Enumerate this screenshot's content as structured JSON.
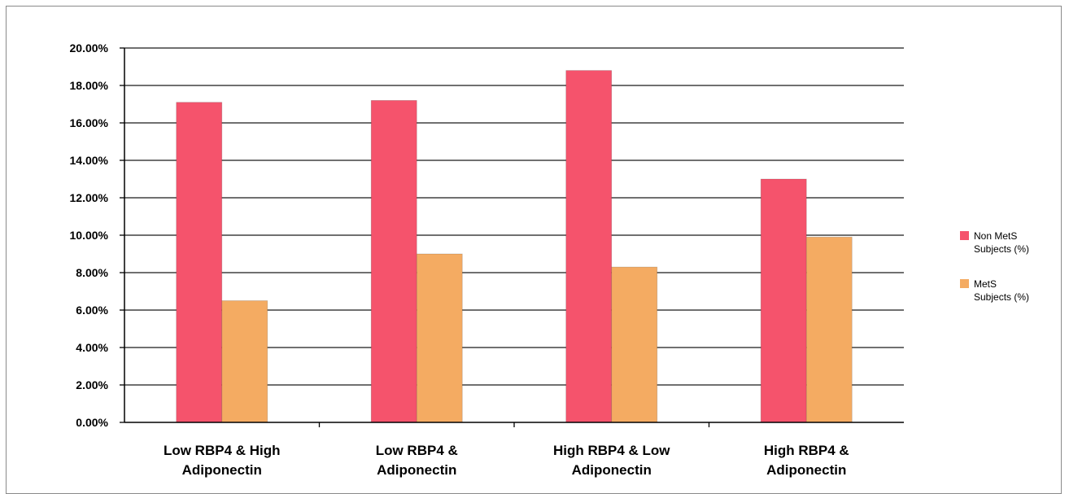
{
  "chart_data": {
    "type": "bar",
    "title": "",
    "xlabel": "",
    "ylabel": "",
    "categories": [
      [
        "Low RBP4 & High",
        "Adiponectin"
      ],
      [
        "Low RBP4 &",
        "Adiponectin"
      ],
      [
        "High RBP4 & Low",
        "Adiponectin"
      ],
      [
        "High RBP4 &",
        "Adiponectin"
      ]
    ],
    "series": [
      {
        "name": [
          "Non MetS",
          "Subjects (%)"
        ],
        "color": "#f5536c",
        "values": [
          17.1,
          17.2,
          18.8,
          13.0
        ]
      },
      {
        "name": [
          "MetS",
          "Subjects (%)"
        ],
        "color": "#f4ab62",
        "values": [
          6.5,
          9.0,
          8.3,
          9.9
        ]
      }
    ],
    "ylim": [
      0,
      20
    ],
    "ytick_step": 2,
    "ytick_labels": [
      "0.00%",
      "2.00%",
      "4.00%",
      "6.00%",
      "8.00%",
      "10.00%",
      "12.00%",
      "14.00%",
      "16.00%",
      "18.00%",
      "20.00%"
    ],
    "grid": true,
    "legend": "right"
  }
}
